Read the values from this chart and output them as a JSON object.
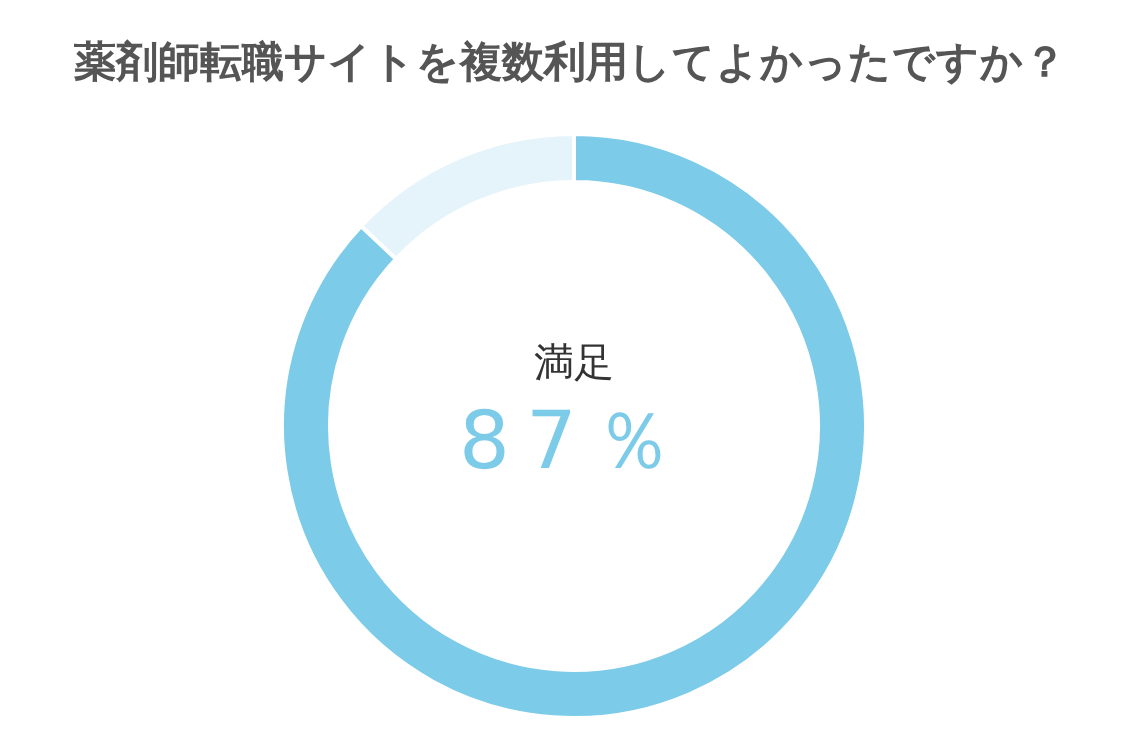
{
  "chart_data": {
    "type": "donut",
    "title": "薬剤師転職サイトを複数利用してよかったですか？",
    "categories": [
      "満足",
      null
    ],
    "values": [
      87,
      13
    ],
    "colors": [
      "#7ccbe8",
      "#e4f4fa"
    ],
    "value_labels": [
      "87％",
      null
    ]
  }
}
